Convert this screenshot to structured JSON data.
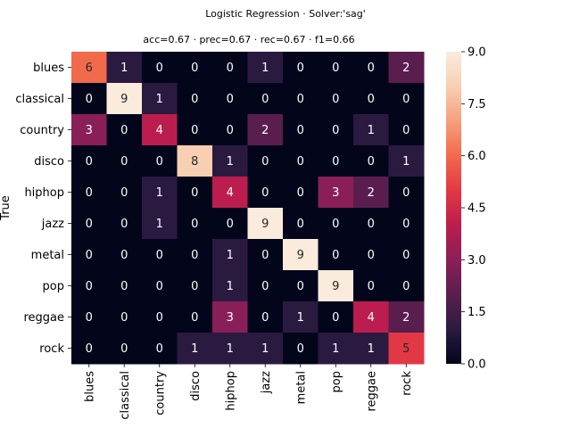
{
  "chart_data": {
    "type": "heatmap",
    "title": "Logistic Regression · Solver:'sag'",
    "subtitle": "acc=0.67 · prec=0.67 · rec=0.67 · f1=0.66",
    "ylabel": "True",
    "xlabel": "",
    "row_labels": [
      "blues",
      "classical",
      "country",
      "disco",
      "hiphop",
      "jazz",
      "metal",
      "pop",
      "reggae",
      "rock"
    ],
    "col_labels": [
      "blues",
      "classical",
      "country",
      "disco",
      "hiphop",
      "jazz",
      "metal",
      "pop",
      "reggae",
      "rock"
    ],
    "values": [
      [
        6,
        1,
        0,
        0,
        0,
        1,
        0,
        0,
        0,
        2
      ],
      [
        0,
        9,
        1,
        0,
        0,
        0,
        0,
        0,
        0,
        0
      ],
      [
        3,
        0,
        4,
        0,
        0,
        2,
        0,
        0,
        1,
        0
      ],
      [
        0,
        0,
        0,
        8,
        1,
        0,
        0,
        0,
        0,
        1
      ],
      [
        0,
        0,
        1,
        0,
        4,
        0,
        0,
        3,
        2,
        0
      ],
      [
        0,
        0,
        1,
        0,
        0,
        9,
        0,
        0,
        0,
        0
      ],
      [
        0,
        0,
        0,
        0,
        1,
        0,
        9,
        0,
        0,
        0
      ],
      [
        0,
        0,
        0,
        0,
        1,
        0,
        0,
        9,
        0,
        0
      ],
      [
        0,
        0,
        0,
        0,
        3,
        0,
        1,
        0,
        4,
        2
      ],
      [
        0,
        0,
        0,
        1,
        1,
        1,
        0,
        1,
        1,
        5
      ]
    ],
    "colorbar": {
      "min": 0,
      "max": 9,
      "ticks": [
        "0.0",
        "1.5",
        "3.0",
        "4.5",
        "6.0",
        "7.5",
        "9.0"
      ]
    },
    "colormap": "rocket",
    "colors": {
      "stops": [
        "#03051a",
        "#2b1a40",
        "#5a1e4e",
        "#8a1f57",
        "#bb1e4e",
        "#e23845",
        "#f26a4c",
        "#f6a07c",
        "#f8cfb2",
        "#faebdd"
      ]
    }
  }
}
